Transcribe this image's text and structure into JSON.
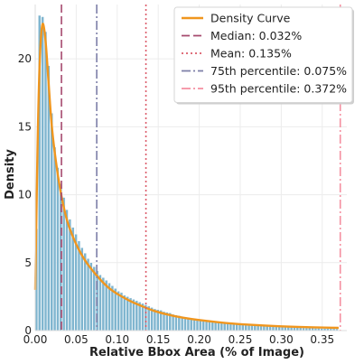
{
  "chart_data": {
    "type": "bar",
    "xlabel": "Relative Bbox Area (% of Image)",
    "ylabel": "Density",
    "xlim": [
      0,
      0.38
    ],
    "ylim": [
      0,
      24
    ],
    "grid": true,
    "legend_position": "top-right",
    "x_ticks": [
      "0.00",
      "0.05",
      "0.10",
      "0.15",
      "0.20",
      "0.25",
      "0.30",
      "0.35"
    ],
    "y_ticks": [
      "0",
      "5",
      "10",
      "15",
      "20"
    ],
    "bin_width": 0.0037,
    "histogram": {
      "bin_starts": [
        0.0,
        0.0037,
        0.0074,
        0.0111,
        0.0148,
        0.0185,
        0.0222,
        0.0259,
        0.0296,
        0.0333,
        0.037,
        0.0407,
        0.0444,
        0.0481,
        0.0518,
        0.0555,
        0.0592,
        0.0629,
        0.0666,
        0.0703,
        0.074,
        0.0777,
        0.0814,
        0.0851,
        0.0888,
        0.0925,
        0.0962,
        0.0999,
        0.1036,
        0.1073,
        0.111,
        0.1147,
        0.1184,
        0.1221,
        0.1258,
        0.1295,
        0.1332,
        0.1369,
        0.1406,
        0.1443,
        0.148,
        0.1517,
        0.1554,
        0.1591,
        0.1628,
        0.1665,
        0.1702,
        0.1739,
        0.1776,
        0.1813,
        0.185,
        0.1887,
        0.1924,
        0.1961,
        0.1998,
        0.2035,
        0.2072,
        0.2109,
        0.2146,
        0.2183,
        0.222,
        0.2257,
        0.2294,
        0.2331,
        0.2368,
        0.2405,
        0.2442,
        0.2479,
        0.2516,
        0.2553,
        0.259,
        0.2627,
        0.2664,
        0.2701,
        0.2738,
        0.2775,
        0.2812,
        0.2849,
        0.2886,
        0.2923,
        0.296,
        0.2997,
        0.3034,
        0.3071,
        0.3108,
        0.3145,
        0.3182,
        0.3219,
        0.3256,
        0.3293,
        0.333,
        0.3367,
        0.3404,
        0.3441,
        0.3478,
        0.3515,
        0.3552,
        0.3589,
        0.3626,
        0.3663
      ],
      "densities": [
        7.5,
        23.2,
        23.1,
        22.0,
        19.5,
        16.0,
        13.5,
        12.0,
        10.8,
        9.8,
        8.9,
        8.2,
        7.6,
        7.1,
        6.6,
        6.1,
        5.7,
        5.3,
        5.0,
        4.7,
        4.4,
        4.1,
        3.9,
        3.7,
        3.5,
        3.3,
        3.1,
        2.9,
        2.8,
        2.6,
        2.5,
        2.4,
        2.3,
        2.2,
        2.1,
        2.0,
        1.9,
        1.8,
        1.7,
        1.6,
        1.55,
        1.5,
        1.4,
        1.35,
        1.3,
        1.2,
        1.15,
        1.1,
        1.05,
        1.0,
        0.95,
        0.9,
        0.88,
        0.85,
        0.8,
        0.78,
        0.75,
        0.72,
        0.7,
        0.67,
        0.64,
        0.62,
        0.6,
        0.57,
        0.55,
        0.53,
        0.5,
        0.48,
        0.46,
        0.44,
        0.42,
        0.4,
        0.39,
        0.37,
        0.35,
        0.34,
        0.32,
        0.31,
        0.3,
        0.29,
        0.28,
        0.27,
        0.26,
        0.25,
        0.24,
        0.23,
        0.22,
        0.21,
        0.2,
        0.19,
        0.19,
        0.18,
        0.17,
        0.17,
        0.16,
        0.15,
        0.15,
        0.14,
        0.14,
        0.13
      ]
    },
    "density_curve": {
      "x": [
        0.0,
        0.004,
        0.008,
        0.012,
        0.016,
        0.02,
        0.025,
        0.03,
        0.035,
        0.04,
        0.05,
        0.06,
        0.07,
        0.08,
        0.09,
        0.1,
        0.11,
        0.12,
        0.13,
        0.14,
        0.15,
        0.17,
        0.19,
        0.21,
        0.23,
        0.25,
        0.27,
        0.29,
        0.31,
        0.33,
        0.35,
        0.37
      ],
      "y": [
        3.0,
        18.0,
        23.0,
        22.0,
        18.5,
        15.0,
        12.5,
        10.5,
        9.0,
        7.8,
        6.3,
        5.2,
        4.4,
        3.7,
        3.1,
        2.7,
        2.35,
        2.05,
        1.8,
        1.55,
        1.35,
        1.05,
        0.85,
        0.7,
        0.57,
        0.47,
        0.4,
        0.34,
        0.29,
        0.25,
        0.22,
        0.2
      ]
    },
    "reference_lines": [
      {
        "name": "Median: 0.032%",
        "x": 0.032,
        "color": "#a5496e",
        "dash": "9,4"
      },
      {
        "name": "Mean: 0.135%",
        "x": 0.135,
        "color": "#dc5c6a",
        "dash": "2,3"
      },
      {
        "name": "75th percentile: 0.075%",
        "x": 0.075,
        "color": "#7d7fa8",
        "dash": "10,3,2,3"
      },
      {
        "name": "95th percentile: 0.372%",
        "x": 0.372,
        "color": "#f58fa0",
        "dash": "10,3,2,3"
      }
    ],
    "legend": [
      {
        "label": "Density Curve",
        "color": "#f0961e",
        "dash": ""
      },
      {
        "label": "Median: 0.032%",
        "color": "#a5496e",
        "dash": "9,4"
      },
      {
        "label": "Mean: 0.135%",
        "color": "#dc5c6a",
        "dash": "2,3"
      },
      {
        "label": "75th percentile: 0.075%",
        "color": "#7d7fa8",
        "dash": "10,3,2,3"
      },
      {
        "label": "95th percentile: 0.372%",
        "color": "#f58fa0",
        "dash": "10,3,2,3"
      }
    ],
    "colors": {
      "bars": "#7fb5cf",
      "curve": "#f0961e",
      "grid": "#ececec",
      "axis": "#dddddd"
    }
  }
}
